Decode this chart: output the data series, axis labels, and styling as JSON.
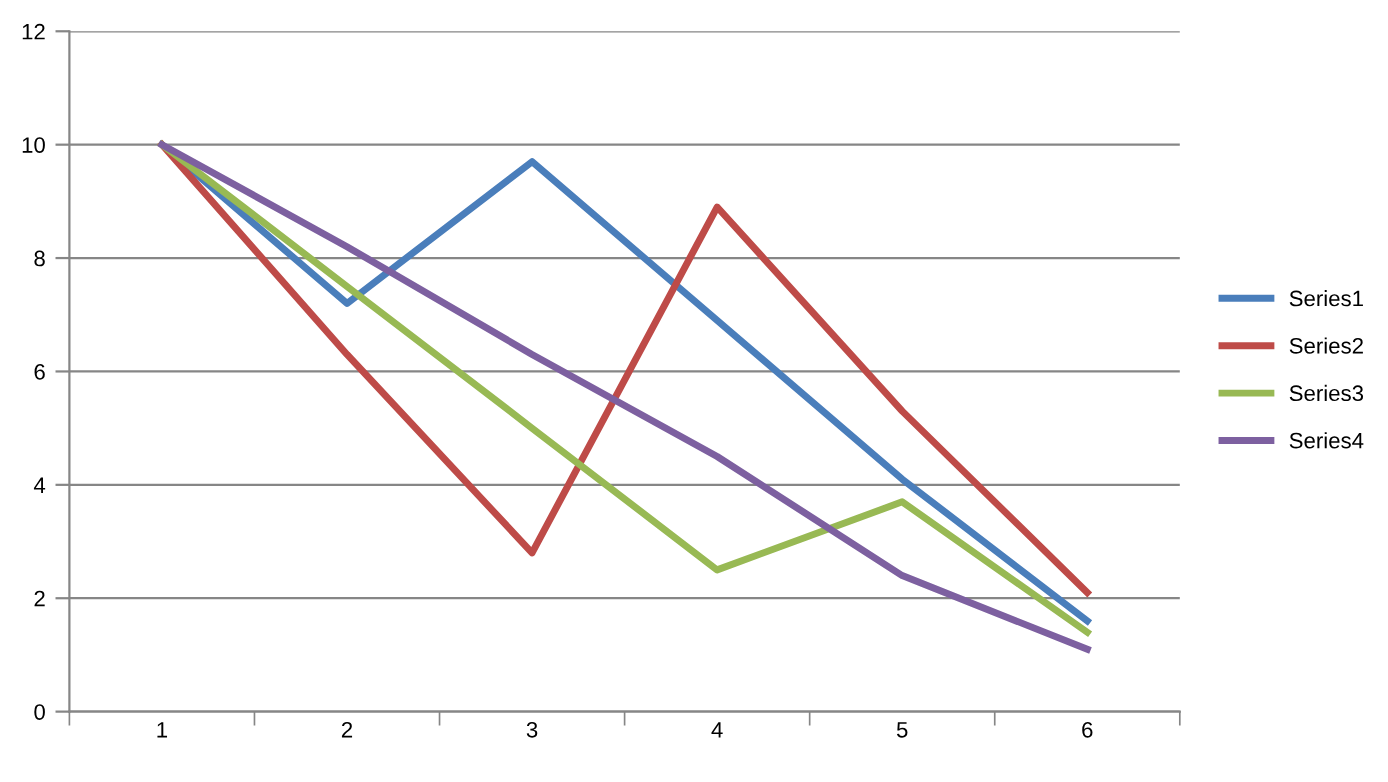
{
  "chart_data": {
    "type": "line",
    "categories": [
      "1",
      "2",
      "3",
      "4",
      "5",
      "6"
    ],
    "series": [
      {
        "name": "Series1",
        "color": "#4a7ebb",
        "values": [
          10,
          7.2,
          9.7,
          6.9,
          4.1,
          1.6
        ]
      },
      {
        "name": "Series2",
        "color": "#be4b48",
        "values": [
          10,
          6.3,
          2.8,
          8.9,
          5.3,
          2.1
        ]
      },
      {
        "name": "Series3",
        "color": "#98b954",
        "values": [
          10,
          7.5,
          5.0,
          2.5,
          3.7,
          1.4
        ]
      },
      {
        "name": "Series4",
        "color": "#7d60a0",
        "values": [
          10,
          8.2,
          6.3,
          4.5,
          2.4,
          1.1
        ]
      }
    ],
    "ylim": [
      0,
      12
    ],
    "yticks": [
      0,
      2,
      4,
      6,
      8,
      10,
      12
    ],
    "grid": "y",
    "legend": "right",
    "marker": "none",
    "line_style": "solid"
  }
}
